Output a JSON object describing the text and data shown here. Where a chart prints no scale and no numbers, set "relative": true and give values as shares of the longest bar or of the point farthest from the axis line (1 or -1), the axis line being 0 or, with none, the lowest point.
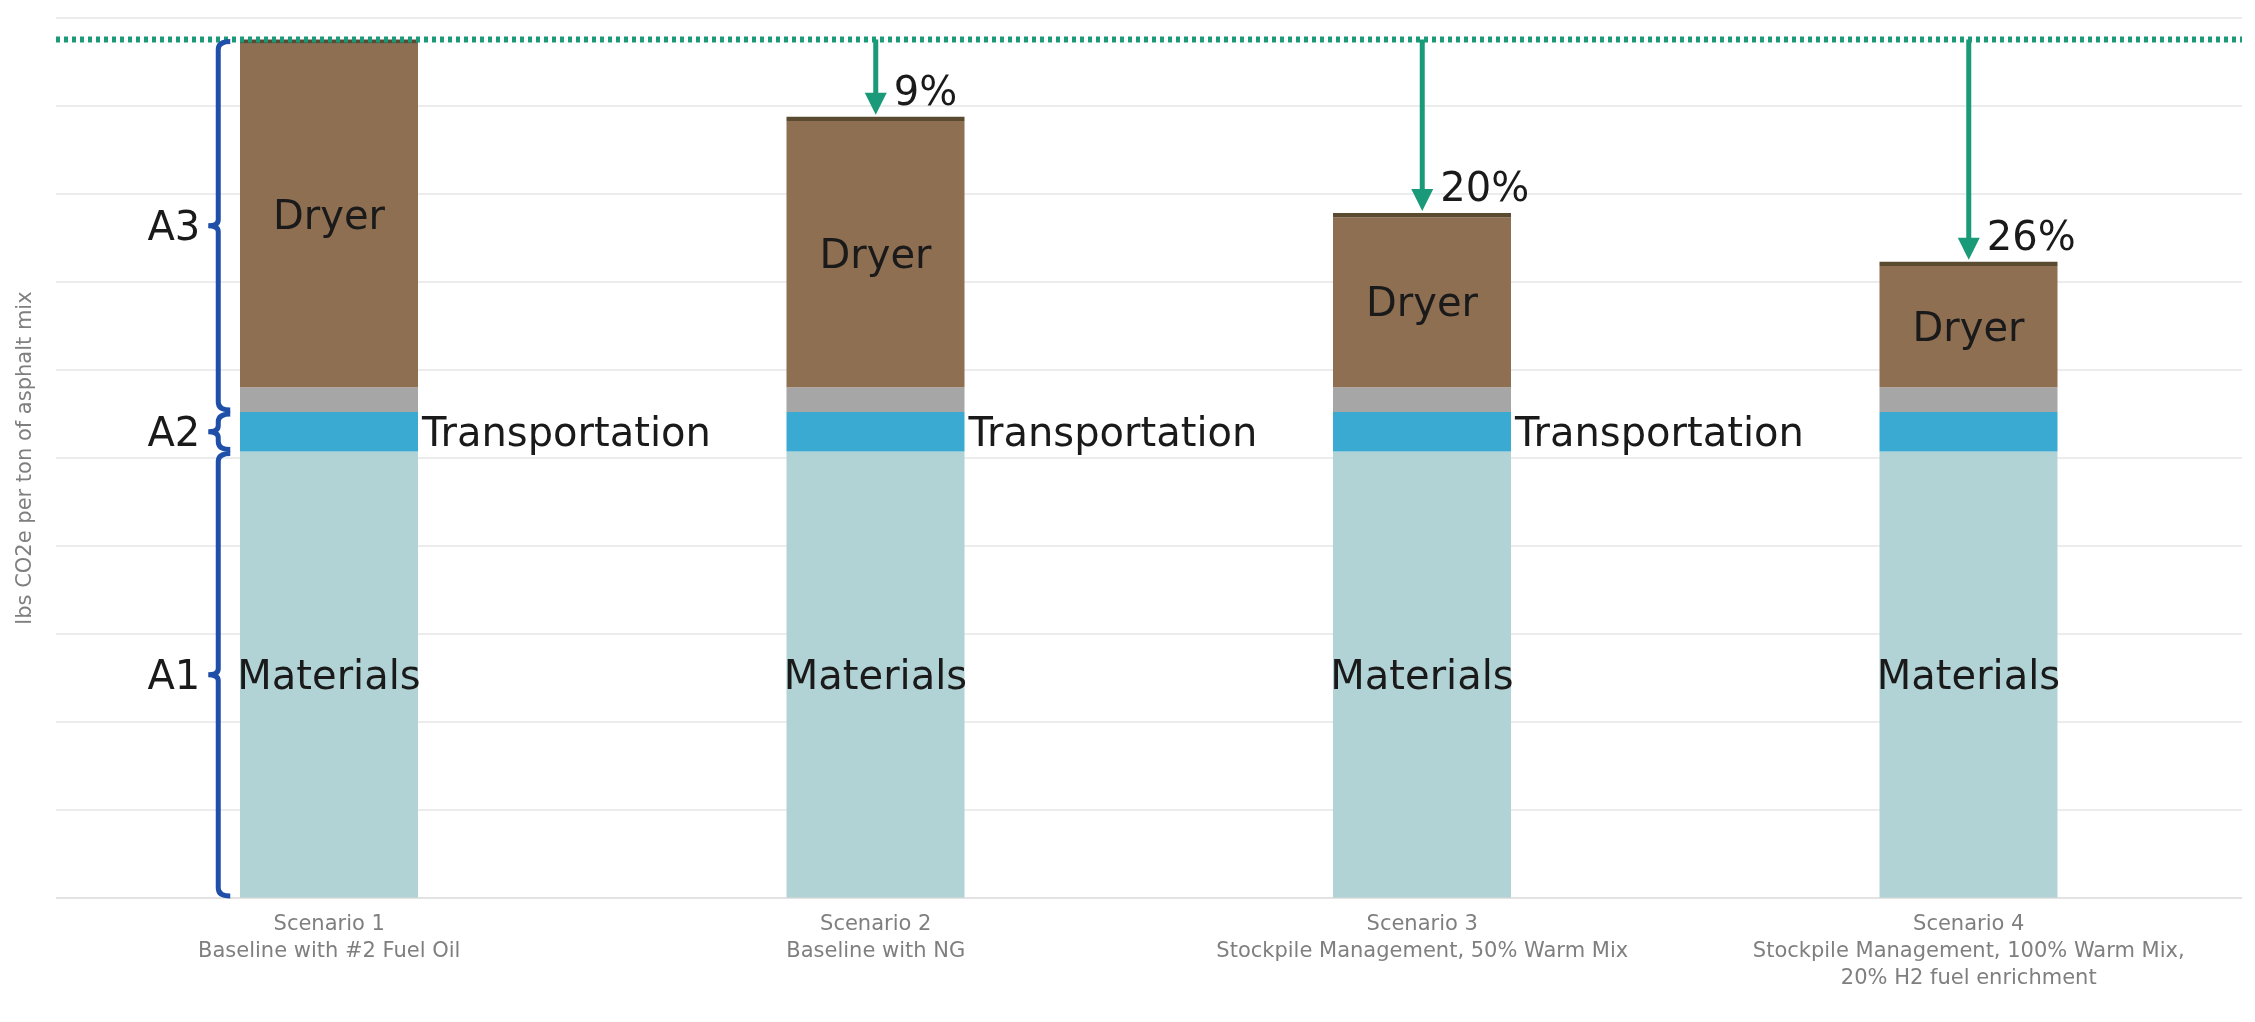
{
  "chart_data": {
    "type": "bar",
    "stacked": true,
    "relative": true,
    "grid": "y",
    "legend": false,
    "ylabel": "lbs CO2e per ton of asphalt mix",
    "categories": [
      "Scenario 1\nBaseline with #2 Fuel Oil",
      "Scenario 2\nBaseline with NG",
      "Scenario 3\nStockpile Management, 50% Warm Mix",
      "Scenario 4\nStockpile Management, 100% Warm Mix,\n20% H2 fuel enrichment"
    ],
    "series": [
      {
        "name": "Materials",
        "color": "#b2d3d6",
        "values": [
          0.52,
          0.52,
          0.52,
          0.52
        ]
      },
      {
        "name": "Transportation",
        "color": "#3aaad2",
        "values": [
          0.046,
          0.046,
          0.046,
          0.046
        ]
      },
      {
        "color": "#a6a6a6",
        "values": [
          0.029,
          0.029,
          0.029,
          0.029
        ]
      },
      {
        "name": "Dryer",
        "color": "#8f6f52",
        "values": [
          0.4,
          0.31,
          0.198,
          0.141
        ]
      },
      {
        "color": "#5a4a30",
        "values": [
          0.005,
          0.005,
          0.005,
          0.005
        ]
      }
    ],
    "ref_lines": [
      {
        "axis": "y",
        "value": 1,
        "color": "#1a9a78",
        "line_style": "dotted"
      }
    ],
    "annotations": [
      "A1",
      "A2",
      "A3",
      {
        "text": "9%",
        "x": "Scenario 2\nBaseline with NG",
        "y": 0.91
      },
      {
        "text": "20%",
        "x": "Scenario 3\nStockpile Management, 50% Warm Mix",
        "y": 0.798
      },
      {
        "text": "26%",
        "x": "Scenario 4\nStockpile Management, 100% Warm Mix,\n20% H2 fuel enrichment",
        "y": 0.741
      }
    ]
  }
}
